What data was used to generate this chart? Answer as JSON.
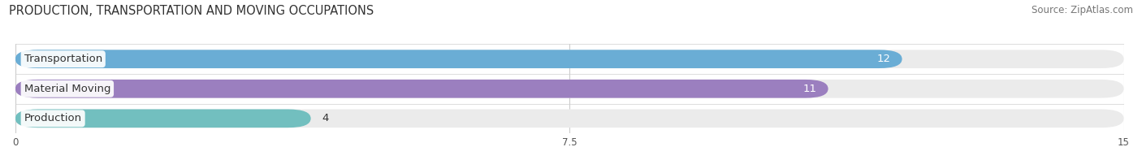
{
  "title": "PRODUCTION, TRANSPORTATION AND MOVING OCCUPATIONS",
  "source": "Source: ZipAtlas.com",
  "categories": [
    "Transportation",
    "Material Moving",
    "Production"
  ],
  "values": [
    12,
    11,
    4
  ],
  "bar_colors": [
    "#6aadd5",
    "#9b7fbf",
    "#72bfbf"
  ],
  "xlim": [
    0,
    15
  ],
  "xticks": [
    0,
    7.5,
    15
  ],
  "bar_bg_color": "#ebebeb",
  "title_fontsize": 10.5,
  "source_fontsize": 8.5,
  "label_fontsize": 9.5,
  "value_fontsize": 9.5
}
